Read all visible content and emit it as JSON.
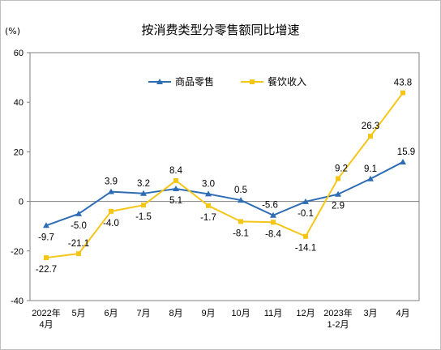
{
  "chart_data": {
    "type": "line",
    "title": "按消费类型分零售额同比增速",
    "unit_label": "(%)",
    "ylim": [
      -40,
      60
    ],
    "yticks": [
      "60",
      "40",
      "20",
      "0",
      "-20",
      "-40"
    ],
    "grid": false,
    "legend_position": "top-center",
    "categories": [
      [
        "2022年",
        "4月"
      ],
      [
        "5月"
      ],
      [
        "6月"
      ],
      [
        "7月"
      ],
      [
        "8月"
      ],
      [
        "9月"
      ],
      [
        "10月"
      ],
      [
        "11月"
      ],
      [
        "12月"
      ],
      [
        "2023年",
        "1-2月"
      ],
      [
        "3月"
      ],
      [
        "4月"
      ]
    ],
    "series": [
      {
        "name": "商品零售",
        "color": "#2e6db4",
        "marker": "triangle",
        "values": [
          -9.7,
          -5.0,
          3.9,
          3.2,
          5.1,
          3.0,
          0.5,
          -5.6,
          -0.1,
          2.9,
          9.1,
          15.9
        ],
        "labels": [
          "-9.7",
          "-5.0",
          "3.9",
          "3.2",
          "5.1",
          "3.0",
          "0.5",
          "-5.6",
          "-0.1",
          "2.9",
          "9.1",
          "15.9"
        ]
      },
      {
        "name": "餐饮收入",
        "color": "#f5c518",
        "marker": "square",
        "values": [
          -22.7,
          -21.1,
          -4.0,
          -1.5,
          8.4,
          -1.7,
          -8.1,
          -8.4,
          -14.1,
          9.2,
          26.3,
          43.8
        ],
        "labels": [
          "-22.7",
          "-21.1",
          "-4.0",
          "-1.5",
          "8.4",
          "-1.7",
          "-8.1",
          "-8.4",
          "-14.1",
          "9.2",
          "26.3",
          "43.8"
        ]
      }
    ]
  }
}
